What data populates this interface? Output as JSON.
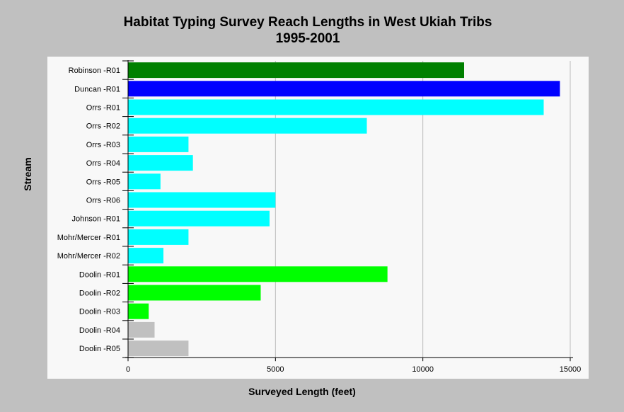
{
  "chart_data": {
    "type": "bar",
    "orientation": "horizontal",
    "title_line1": "Habitat Typing Survey Reach Lengths in West Ukiah Tribs",
    "title_line2": "1995-2001",
    "xlabel": "Surveyed Length (feet)",
    "ylabel": "Stream",
    "xlim": [
      0,
      15000
    ],
    "xticks": [
      0,
      5000,
      10000,
      15000
    ],
    "grid": "vertical",
    "legend": "none",
    "categories": [
      "Robinson -R01",
      "Duncan -R01",
      "Orrs -R01",
      "Orrs -R02",
      "Orrs -R03",
      "Orrs -R04",
      "Orrs -R05",
      "Orrs -R06",
      "Johnson -R01",
      "Mohr/Mercer -R01",
      "Mohr/Mercer -R02",
      "Doolin -R01",
      "Doolin -R02",
      "Doolin -R03",
      "Doolin -R04",
      "Doolin -R05"
    ],
    "values": [
      11400,
      14650,
      14100,
      8100,
      2050,
      2200,
      1100,
      5000,
      4800,
      2050,
      1200,
      8800,
      4500,
      700,
      900,
      2050
    ],
    "colors": [
      "#008000",
      "#0000ff",
      "#00ffff",
      "#00ffff",
      "#00ffff",
      "#00ffff",
      "#00ffff",
      "#00ffff",
      "#00ffff",
      "#00ffff",
      "#00ffff",
      "#00ff00",
      "#00ff00",
      "#00ff00",
      "#c0c0c0",
      "#c0c0c0"
    ]
  },
  "style": {
    "background": "#c0c0c0",
    "plot_background": "#f8f8f8",
    "grid_color": "#bbbbbb"
  }
}
